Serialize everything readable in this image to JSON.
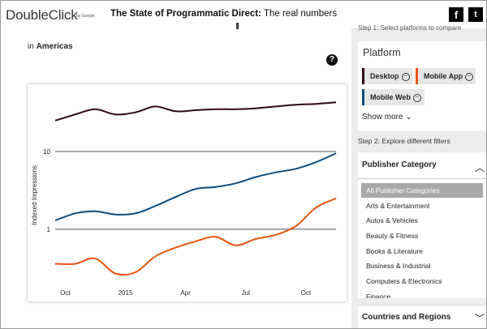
{
  "header": {
    "brand": "DoubleClick",
    "byline": "by Google",
    "title_bold": "The State of Programmatic Direct:",
    "title_rest": " The real numbers",
    "facebook": "f",
    "twitter": "t"
  },
  "left": {
    "region_prefix": "in ",
    "region": "Americas",
    "help": "?"
  },
  "chart_data": {
    "type": "line",
    "ylabel": "Indexed Impressions",
    "yscale": "log",
    "ytick_labels": [
      "10",
      "1"
    ],
    "xtick_labels": [
      "Oct",
      "2015",
      "Apr",
      "Jul",
      "Oct"
    ],
    "grid": true,
    "series": [
      {
        "name": "Desktop",
        "color": "#2d0a12",
        "values": [
          [
            0,
            25
          ],
          [
            4,
            30
          ],
          [
            8,
            35
          ],
          [
            12,
            30
          ],
          [
            16,
            32
          ],
          [
            20,
            38
          ],
          [
            24,
            33
          ],
          [
            28,
            34
          ],
          [
            32,
            35
          ],
          [
            36,
            35
          ],
          [
            40,
            36
          ],
          [
            44,
            38
          ],
          [
            48,
            40
          ],
          [
            52,
            41
          ],
          [
            56,
            43
          ]
        ]
      },
      {
        "name": "Mobile Web",
        "color": "#0d4b7d",
        "values": [
          [
            0,
            1.3
          ],
          [
            4,
            1.6
          ],
          [
            8,
            1.7
          ],
          [
            12,
            1.55
          ],
          [
            16,
            1.6
          ],
          [
            20,
            2.0
          ],
          [
            24,
            2.6
          ],
          [
            28,
            3.3
          ],
          [
            32,
            3.5
          ],
          [
            36,
            3.9
          ],
          [
            40,
            4.7
          ],
          [
            44,
            5.4
          ],
          [
            48,
            6.0
          ],
          [
            52,
            7.3
          ],
          [
            56,
            9.5
          ]
        ]
      },
      {
        "name": "Mobile App",
        "color": "#e8540f",
        "values": [
          [
            0,
            0.36
          ],
          [
            4,
            0.36
          ],
          [
            8,
            0.42
          ],
          [
            12,
            0.27
          ],
          [
            16,
            0.28
          ],
          [
            20,
            0.45
          ],
          [
            24,
            0.58
          ],
          [
            28,
            0.7
          ],
          [
            32,
            0.8
          ],
          [
            36,
            0.62
          ],
          [
            40,
            0.75
          ],
          [
            44,
            0.85
          ],
          [
            48,
            1.1
          ],
          [
            52,
            1.9
          ],
          [
            56,
            2.5
          ]
        ]
      }
    ]
  },
  "filters": {
    "step1": "Step 1: Select platforms to compare",
    "platform_title": "Platform",
    "chips": [
      {
        "label": "Desktop",
        "color": "#2d0a12"
      },
      {
        "label": "Mobile App",
        "color": "#e8540f"
      },
      {
        "label": "Mobile Web",
        "color": "#0d4b7d"
      }
    ],
    "chip_remove": "−",
    "show_more": "Show more ⌄",
    "step2": "Step 2: Explore different filters",
    "category_title": "Publisher Category",
    "categories": [
      "All Publisher Categories",
      "Arts & Entertainment",
      "Autos & Vehicles",
      "Beauty & Fitness",
      "Books & Literature",
      "Business & Industrial",
      "Computers & Electronics",
      "Finance"
    ],
    "countries_title": "Countries and Regions",
    "chev_up": "︿",
    "chev_down": "﹀"
  }
}
